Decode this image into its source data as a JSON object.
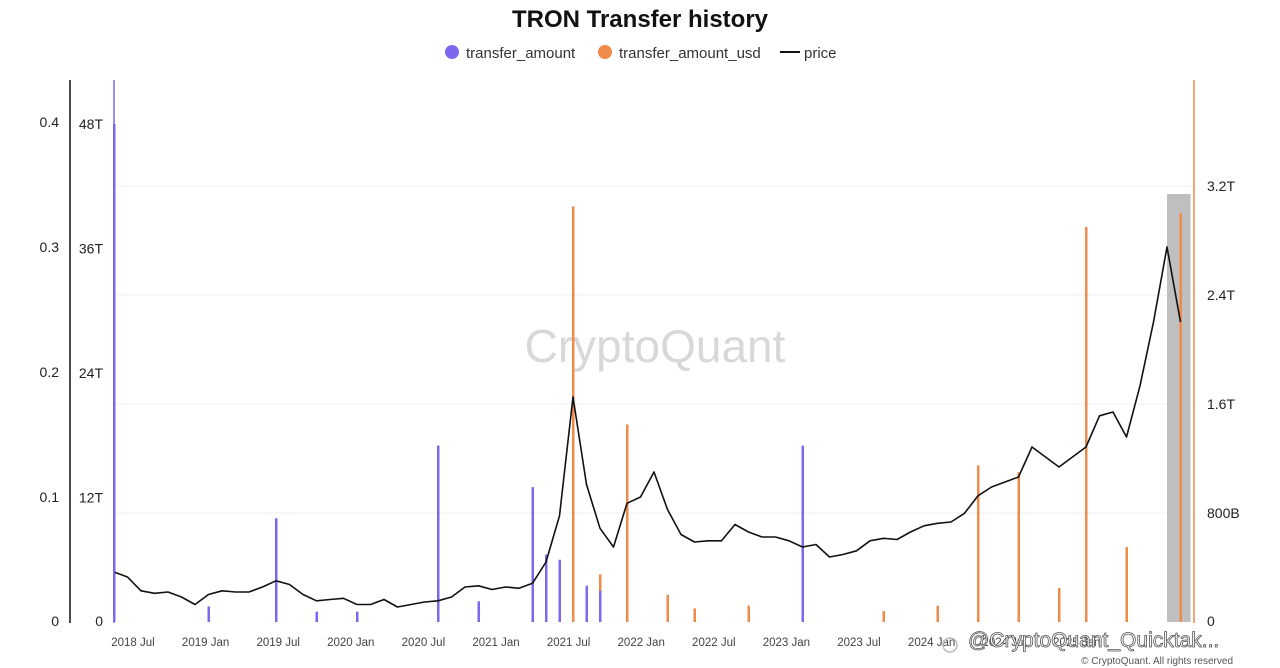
{
  "chart_data": {
    "type": "line",
    "title": "TRON Transfer history",
    "watermark": "CryptoQuant",
    "handle": "@CryptoQuant_Quicktak...",
    "copyright": "© CryptoQuant. All rights reserved",
    "legend": [
      {
        "name": "transfer_amount",
        "color": "#7b68ee",
        "marker": "dot"
      },
      {
        "name": "transfer_amount_usd",
        "color": "#ee8a4a",
        "marker": "dot"
      },
      {
        "name": "price",
        "color": "#111111",
        "marker": "line"
      }
    ],
    "x_ticks": [
      "2018 Jul",
      "2019 Jan",
      "2019 Jul",
      "2020 Jan",
      "2020 Jul",
      "2021 Jan",
      "2021 Jul",
      "2022 Jan",
      "2022 Jul",
      "2023 Jan",
      "2023 Jul",
      "2024 Jan",
      "2024 Jul",
      "2025 Jan"
    ],
    "x_range": [
      "2018-06",
      "2025-02"
    ],
    "axes": {
      "price_axis": {
        "ticks": [
          "0",
          "0.1",
          "0.2",
          "0.3",
          "0.4"
        ],
        "range": [
          0,
          0.4
        ]
      },
      "transfer_amount_axis": {
        "ticks": [
          "0",
          "12T",
          "24T",
          "36T",
          "48T"
        ],
        "range": [
          0,
          48
        ]
      },
      "transfer_amount_usd_axis": {
        "ticks": [
          "0",
          "800B",
          "1.6T",
          "2.4T",
          "3.2T"
        ],
        "range": [
          0,
          3.2
        ]
      }
    },
    "grid": true,
    "highlight": {
      "from": "2024-12",
      "to": "2025-01",
      "color": "#b8b8b8"
    },
    "series": [
      {
        "name": "price",
        "color": "#111111",
        "x": [
          "2018-06",
          "2018-07",
          "2018-08",
          "2018-09",
          "2018-10",
          "2018-11",
          "2018-12",
          "2019-01",
          "2019-02",
          "2019-03",
          "2019-04",
          "2019-05",
          "2019-06",
          "2019-07",
          "2019-08",
          "2019-09",
          "2019-10",
          "2019-11",
          "2019-12",
          "2020-01",
          "2020-02",
          "2020-03",
          "2020-04",
          "2020-05",
          "2020-06",
          "2020-07",
          "2020-08",
          "2020-09",
          "2020-10",
          "2020-11",
          "2020-12",
          "2021-01",
          "2021-02",
          "2021-03",
          "2021-04",
          "2021-05",
          "2021-06",
          "2021-07",
          "2021-08",
          "2021-09",
          "2021-10",
          "2021-11",
          "2021-12",
          "2022-01",
          "2022-02",
          "2022-03",
          "2022-04",
          "2022-05",
          "2022-06",
          "2022-07",
          "2022-08",
          "2022-09",
          "2022-10",
          "2022-11",
          "2022-12",
          "2023-01",
          "2023-02",
          "2023-03",
          "2023-04",
          "2023-05",
          "2023-06",
          "2023-07",
          "2023-08",
          "2023-09",
          "2023-10",
          "2023-11",
          "2023-12",
          "2024-01",
          "2024-02",
          "2024-03",
          "2024-04",
          "2024-05",
          "2024-06",
          "2024-07",
          "2024-08",
          "2024-09",
          "2024-10",
          "2024-11",
          "2024-12",
          "2025-01"
        ],
        "values": [
          0.04,
          0.036,
          0.025,
          0.023,
          0.024,
          0.02,
          0.014,
          0.022,
          0.025,
          0.024,
          0.024,
          0.028,
          0.033,
          0.03,
          0.022,
          0.017,
          0.018,
          0.019,
          0.014,
          0.014,
          0.018,
          0.012,
          0.014,
          0.016,
          0.017,
          0.02,
          0.028,
          0.029,
          0.026,
          0.028,
          0.027,
          0.031,
          0.048,
          0.085,
          0.18,
          0.11,
          0.075,
          0.06,
          0.095,
          0.1,
          0.12,
          0.09,
          0.07,
          0.064,
          0.065,
          0.065,
          0.078,
          0.072,
          0.068,
          0.068,
          0.065,
          0.06,
          0.062,
          0.052,
          0.054,
          0.057,
          0.065,
          0.067,
          0.066,
          0.072,
          0.077,
          0.079,
          0.08,
          0.087,
          0.101,
          0.108,
          0.112,
          0.116,
          0.14,
          0.132,
          0.124,
          0.132,
          0.14,
          0.165,
          0.168,
          0.148,
          0.189,
          0.24,
          0.3,
          0.24
        ]
      },
      {
        "name": "transfer_amount",
        "color": "#7b68ee",
        "x": [
          "2018-06",
          "2019-01",
          "2019-06",
          "2019-09",
          "2019-12",
          "2020-06",
          "2020-09",
          "2021-01",
          "2021-02",
          "2021-03",
          "2021-05",
          "2021-06",
          "2022-09"
        ],
        "values": [
          48,
          1.5,
          10,
          1,
          1,
          17,
          2,
          13,
          6.5,
          6,
          3.5,
          3,
          17
        ]
      },
      {
        "name": "transfer_amount_usd",
        "color": "#ee8a4a",
        "x": [
          "2021-04",
          "2021-05",
          "2021-06",
          "2021-08",
          "2021-11",
          "2022-01",
          "2022-05",
          "2022-09",
          "2023-03",
          "2023-07",
          "2023-10",
          "2024-01",
          "2024-04",
          "2024-06",
          "2024-09",
          "2025-01"
        ],
        "values": [
          3.05,
          0.25,
          0.35,
          1.45,
          0.2,
          0.1,
          0.12,
          1.2,
          0.08,
          0.12,
          1.15,
          1.1,
          0.25,
          2.9,
          0.55,
          3.0
        ]
      }
    ]
  }
}
